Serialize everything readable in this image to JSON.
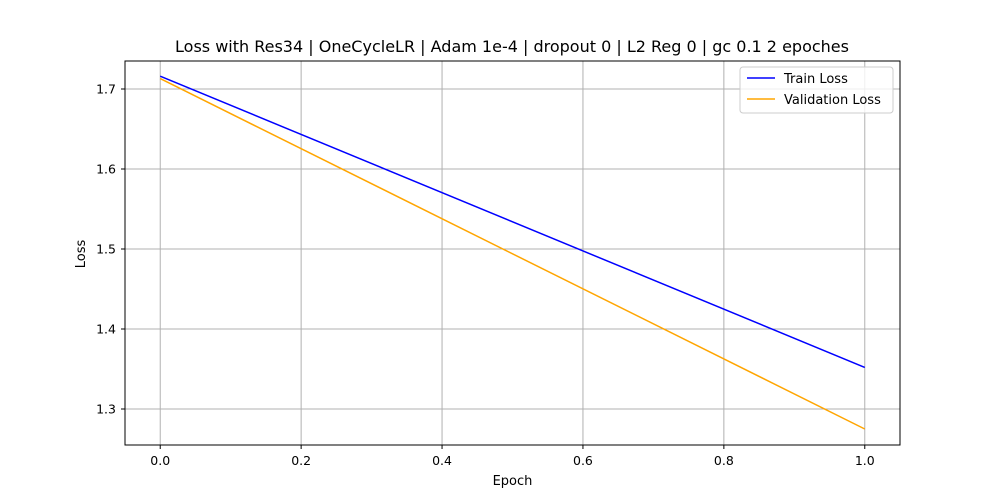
{
  "chart_data": {
    "type": "line",
    "title": "Loss with Res34 | OneCycleLR | Adam 1e-4 | dropout 0 | L2 Reg 0 | gc 0.1 2 epoches",
    "xlabel": "Epoch",
    "ylabel": "Loss",
    "xlim": [
      -0.05,
      1.05
    ],
    "ylim": [
      1.255,
      1.735
    ],
    "xticks": [
      0.0,
      0.2,
      0.4,
      0.6,
      0.8,
      1.0
    ],
    "xtick_labels": [
      "0.0",
      "0.2",
      "0.4",
      "0.6",
      "0.8",
      "1.0"
    ],
    "yticks": [
      1.3,
      1.4,
      1.5,
      1.6,
      1.7
    ],
    "ytick_labels": [
      "1.3",
      "1.4",
      "1.5",
      "1.6",
      "1.7"
    ],
    "grid": true,
    "legend_position": "top-right",
    "series": [
      {
        "name": "Train Loss",
        "color": "#0000ff",
        "x": [
          0.0,
          1.0
        ],
        "y": [
          1.716,
          1.352
        ]
      },
      {
        "name": "Validation Loss",
        "color": "#ffa500",
        "x": [
          0.0,
          1.0
        ],
        "y": [
          1.713,
          1.275
        ]
      }
    ]
  }
}
